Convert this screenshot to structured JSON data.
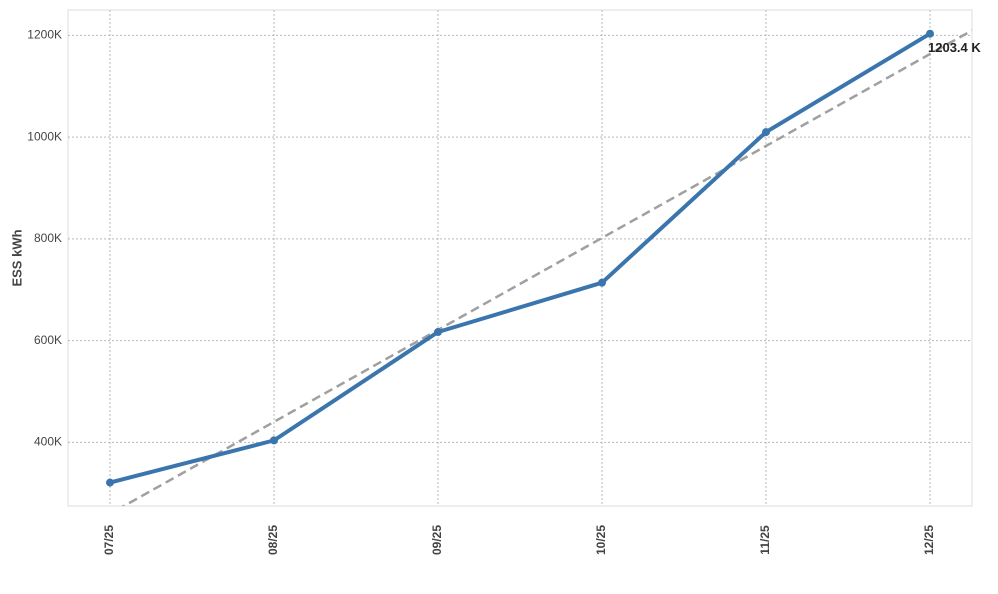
{
  "chart_data": {
    "type": "line",
    "y_label": "ESS kWh",
    "categories": [
      "07/25",
      "08/25",
      "09/25",
      "10/25",
      "11/25",
      "12/25"
    ],
    "series": [
      {
        "color": "#3a75ad",
        "values": [
          321000,
          404000,
          617000,
          714000,
          1010000,
          1203400
        ],
        "value_labels": [
          null,
          null,
          null,
          null,
          null,
          "1203.4 K"
        ]
      }
    ],
    "ylim": [
      275000,
      1250000
    ],
    "yticks": [
      {
        "value": 400000,
        "label": "400K"
      },
      {
        "value": 600000,
        "label": "600K"
      },
      {
        "value": 800000,
        "label": "800K"
      },
      {
        "value": 1000000,
        "label": "1000K"
      },
      {
        "value": 1200000,
        "label": "1200K"
      }
    ],
    "grid": true,
    "trendline": {
      "color": "#a0a0a0",
      "dashed": true
    }
  }
}
